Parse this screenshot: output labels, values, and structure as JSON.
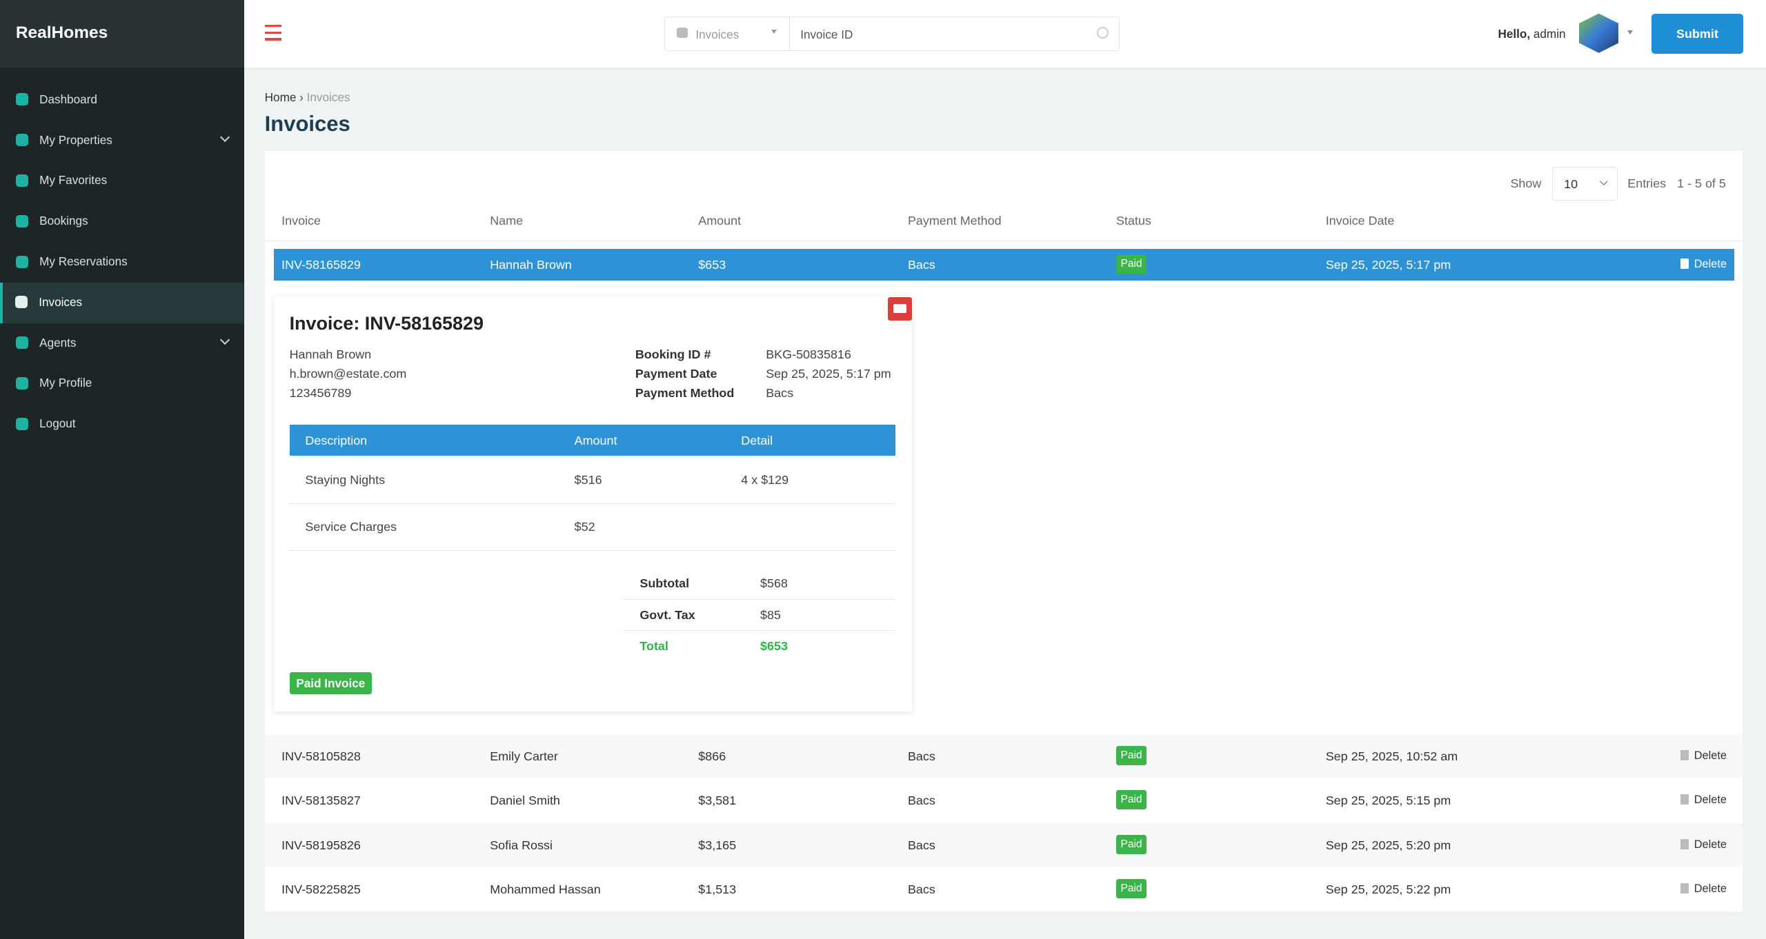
{
  "sidebar": {
    "brand": "RealHomes",
    "menu": [
      "Dashboard",
      "My Properties",
      "My Favorites",
      "Bookings",
      "My Reservations",
      "Invoices",
      "Agents",
      "My Profile",
      "Logout"
    ]
  },
  "header": {
    "search_scope": "Invoices",
    "search_placeholder": "Invoice ID",
    "greeting": "Hello,",
    "user": "admin",
    "submit": "Submit"
  },
  "breadcrumb": [
    "Home",
    "Invoices"
  ],
  "page_title": "Invoices",
  "table": {
    "show_label": "Show",
    "page_size": 10,
    "entries_label": "Entries",
    "range": "1 - 5 of 5",
    "columns": [
      "Invoice",
      "Name",
      "Amount",
      "Payment Method",
      "Status",
      "Invoice Date"
    ],
    "rows": [
      [
        "INV-58165829",
        "Hannah Brown",
        "$653",
        "Bacs",
        "Paid",
        "Sep 25, 2025, 5:17 pm",
        "Delete"
      ],
      [
        "INV-58105828",
        "Emily Carter",
        "$866",
        "Bacs",
        "Paid",
        "Sep 25, 2025, 10:52 am",
        "Delete"
      ],
      [
        "INV-58135827",
        "Daniel Smith",
        "$3,581",
        "Bacs",
        "Paid",
        "Sep 25, 2025, 5:15 pm",
        "Delete"
      ],
      [
        "INV-58195826",
        "Sofia Rossi",
        "$3,165",
        "Bacs",
        "Paid",
        "Sep 25, 2025, 5:20 pm",
        "Delete"
      ],
      [
        "INV-58225825",
        "Mohammed Hassan",
        "$1,513",
        "Bacs",
        "Paid",
        "Sep 25, 2025, 5:22 pm",
        "Delete"
      ]
    ]
  },
  "invoice": {
    "title": "Invoice: INV-58165829",
    "customer": [
      "Hannah Brown",
      "h.brown@estate.com",
      "123456789"
    ],
    "meta": [
      [
        "Booking ID #",
        "BKG-50835816"
      ],
      [
        "Payment Date",
        "Sep 25, 2025, 5:17 pm"
      ],
      [
        "Payment Method",
        "Bacs"
      ]
    ],
    "items_header": [
      "Description",
      "Amount",
      "Detail"
    ],
    "items": [
      [
        "Staying Nights",
        "$516",
        "4 x $129"
      ],
      [
        "Service Charges",
        "$52",
        ""
      ]
    ],
    "totals": [
      [
        "Subtotal",
        "$568"
      ],
      [
        "Govt. Tax",
        "$85"
      ],
      [
        "Total",
        "$653"
      ]
    ],
    "status_badge": "Paid Invoice"
  }
}
